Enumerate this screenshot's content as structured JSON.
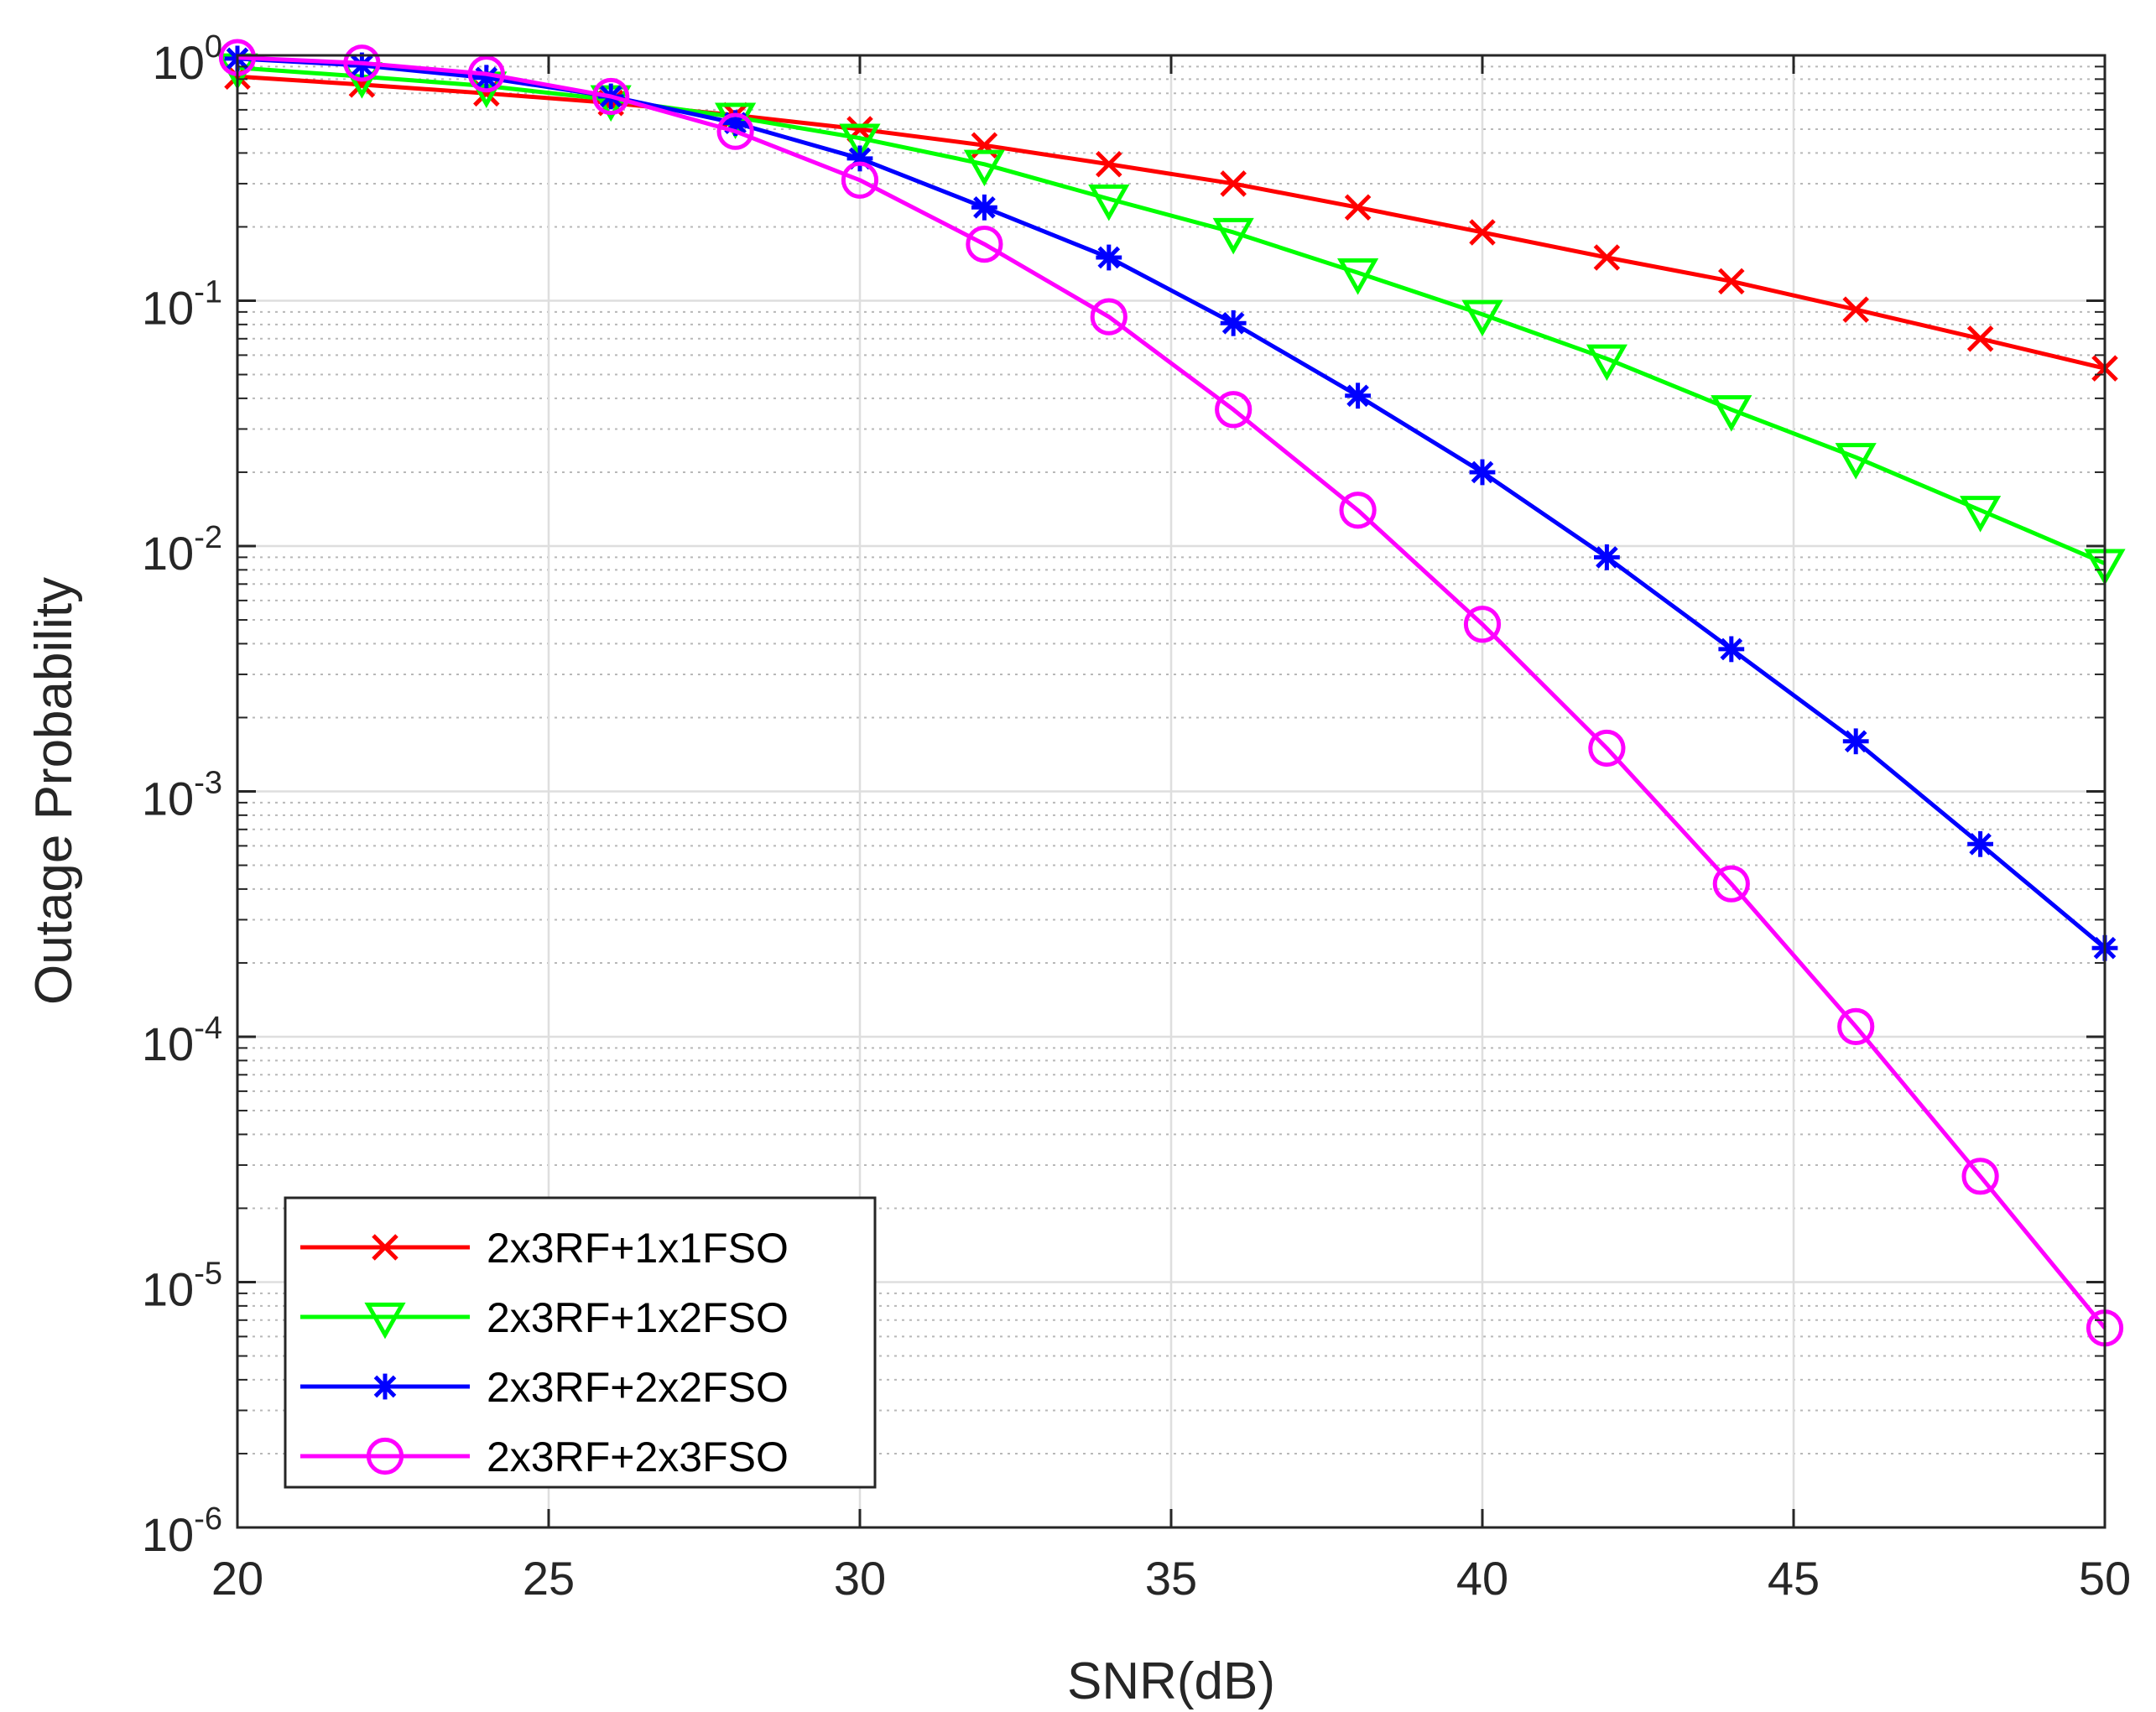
{
  "chart_data": {
    "type": "line",
    "xscale": "linear",
    "yscale": "log",
    "title": "",
    "xlabel": "SNR(dB)",
    "ylabel": "Outage Probability",
    "xlim": [
      20,
      50
    ],
    "ylim": [
      1e-06,
      1
    ],
    "xticks": [
      20,
      25,
      30,
      35,
      40,
      45,
      50
    ],
    "xtick_labels": [
      "20",
      "25",
      "30",
      "35",
      "40",
      "45",
      "50"
    ],
    "yticks": [
      {
        "value": 1e-06,
        "base": "10",
        "exp": "-6"
      },
      {
        "value": 1e-05,
        "base": "10",
        "exp": "-5"
      },
      {
        "value": 0.0001,
        "base": "10",
        "exp": "-4"
      },
      {
        "value": 0.001,
        "base": "10",
        "exp": "-3"
      },
      {
        "value": 0.01,
        "base": "10",
        "exp": "-2"
      },
      {
        "value": 0.1,
        "base": "10",
        "exp": "-1"
      },
      {
        "value": 1,
        "base": "10",
        "exp": "0"
      }
    ],
    "grid": true,
    "minor_grid": true,
    "legend_location": "bottom-left",
    "x": [
      20,
      22,
      24,
      26,
      28,
      30,
      32,
      34,
      36,
      38,
      40,
      42,
      44,
      46,
      48,
      50
    ],
    "series": [
      {
        "name": "2x3RF+1x1FSO",
        "color": "#ff0000",
        "marker": "x",
        "values": [
          0.82,
          0.76,
          0.7,
          0.64,
          0.57,
          0.5,
          0.43,
          0.36,
          0.3,
          0.24,
          0.19,
          0.15,
          0.12,
          0.092,
          0.07,
          0.053
        ]
      },
      {
        "name": "2x3RF+1x2FSO",
        "color": "#00ff00",
        "marker": "triangle-down",
        "values": [
          0.89,
          0.82,
          0.75,
          0.66,
          0.56,
          0.46,
          0.36,
          0.26,
          0.19,
          0.13,
          0.088,
          0.058,
          0.036,
          0.023,
          0.014,
          0.0085
        ]
      },
      {
        "name": "2x3RF+2x2FSO",
        "color": "#0000ff",
        "marker": "asterisk",
        "values": [
          0.97,
          0.91,
          0.81,
          0.68,
          0.53,
          0.38,
          0.24,
          0.15,
          0.081,
          0.041,
          0.02,
          0.009,
          0.0038,
          0.0016,
          0.00061,
          0.00023
        ]
      },
      {
        "name": "2x3RF+2x3FSO",
        "color": "#ff00ff",
        "marker": "circle",
        "values": [
          0.98,
          0.93,
          0.84,
          0.68,
          0.49,
          0.31,
          0.17,
          0.086,
          0.036,
          0.014,
          0.0048,
          0.0015,
          0.00042,
          0.00011,
          2.7e-05,
          6.5e-06
        ]
      }
    ]
  }
}
